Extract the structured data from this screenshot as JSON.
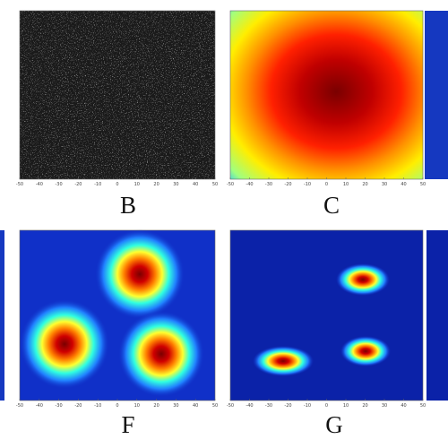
{
  "panels": [
    {
      "label": "B"
    },
    {
      "label": "C"
    },
    {
      "label": "F"
    },
    {
      "label": "G"
    }
  ],
  "x_ticks": [
    "-50",
    "-40",
    "-30",
    "-20",
    "-10",
    "0",
    "10",
    "20",
    "30",
    "40",
    "50"
  ]
}
